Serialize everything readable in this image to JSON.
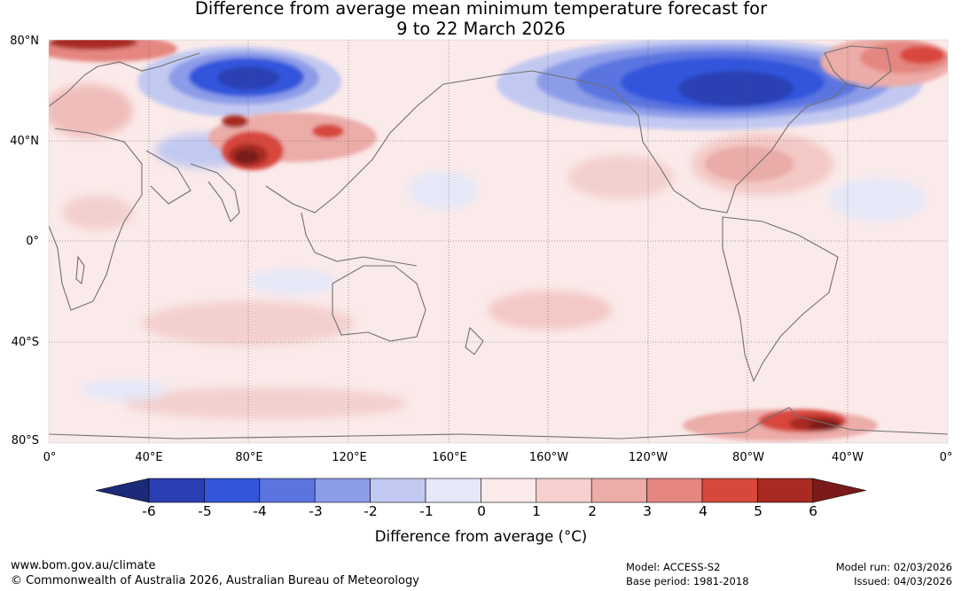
{
  "title": {
    "line1": "Difference from average mean minimum temperature forecast for",
    "line2": "9 to 22 March 2026"
  },
  "map": {
    "lat_labels": [
      "80°N",
      "40°N",
      "0°",
      "40°S",
      "80°S"
    ],
    "lon_labels": [
      "0°",
      "40°E",
      "80°E",
      "120°E",
      "160°E",
      "160°W",
      "120°W",
      "80°W",
      "40°W",
      "0°"
    ],
    "colors": {
      "background": "#fbeaea",
      "gridline": "#555555",
      "coastline": "#707070"
    },
    "anomaly_regions": [
      {
        "name": "northern-canada-cold",
        "level": "-5",
        "color": "#2c40c0"
      },
      {
        "name": "siberia-cold",
        "level": "-5",
        "color": "#2c40c0"
      },
      {
        "name": "tibet-warm",
        "level": "6",
        "color": "#7a1a1a"
      },
      {
        "name": "antarctic-peninsula-warm",
        "level": "6",
        "color": "#7a1a1a"
      },
      {
        "name": "arctic-europe-warm",
        "level": "5",
        "color": "#a82a22"
      },
      {
        "name": "greenland-warm",
        "level": "4",
        "color": "#d8473c"
      },
      {
        "name": "eastern-usa-warm",
        "level": "2",
        "color": "#e9aca8"
      }
    ]
  },
  "colorbar": {
    "ticks": [
      "-6",
      "-5",
      "-4",
      "-3",
      "-2",
      "-1",
      "0",
      "1",
      "2",
      "3",
      "4",
      "5",
      "6"
    ],
    "colors": [
      "#1d2a7a",
      "#2a3fb3",
      "#3355dc",
      "#5a74e0",
      "#8c9ce8",
      "#c2c9f1",
      "#e6e8f8",
      "#fbeaea",
      "#f5d0ce",
      "#ecaca8",
      "#e58680",
      "#d8473c",
      "#a82a22",
      "#7a1a1a"
    ],
    "label": "Difference from average (°C)"
  },
  "footer": {
    "website": "www.bom.gov.au/climate",
    "copyright": "© Commonwealth of Australia 2026, Australian Bureau of Meteorology",
    "model": "Model: ACCESS-S2",
    "base_period": "Base period: 1981-2018",
    "model_run": "Model run: 02/03/2026",
    "issued": "Issued: 04/03/2026"
  }
}
